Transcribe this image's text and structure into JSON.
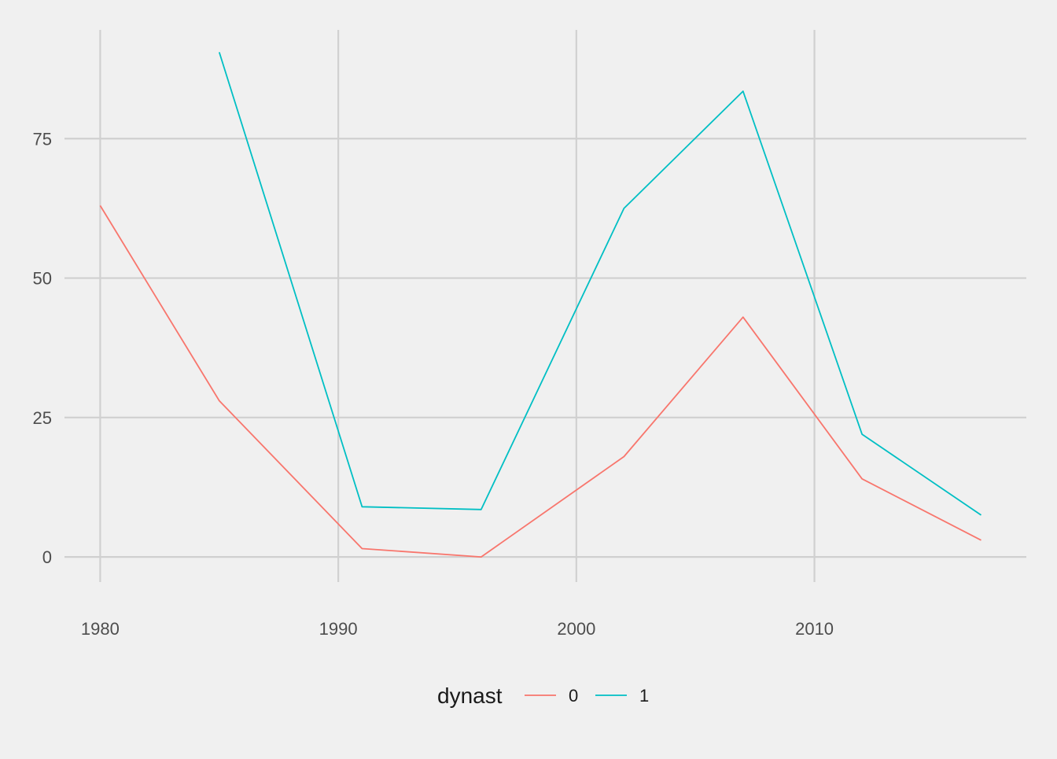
{
  "chart_data": {
    "type": "line",
    "title": "",
    "xlabel": "",
    "ylabel": "",
    "xlim": [
      1978.5,
      2018.9
    ],
    "ylim": [
      -4.5,
      94.5
    ],
    "x_ticks": [
      1980,
      1990,
      2000,
      2010
    ],
    "y_ticks": [
      0,
      25,
      50,
      75
    ],
    "grid": true,
    "legend": {
      "title": "dynast",
      "position": "bottom"
    },
    "series": [
      {
        "name": "0",
        "color": "#f8766d",
        "x": [
          1980,
          1985,
          1991,
          1996,
          2002,
          2007,
          2012,
          2017
        ],
        "y": [
          63,
          28,
          1.5,
          0,
          18,
          43,
          14,
          3
        ]
      },
      {
        "name": "1",
        "color": "#00bfc4",
        "x": [
          1985,
          1991,
          1996,
          2002,
          2007,
          2012,
          2017
        ],
        "y": [
          90.5,
          9,
          8.5,
          62.5,
          83.5,
          22,
          7.5
        ]
      }
    ]
  }
}
